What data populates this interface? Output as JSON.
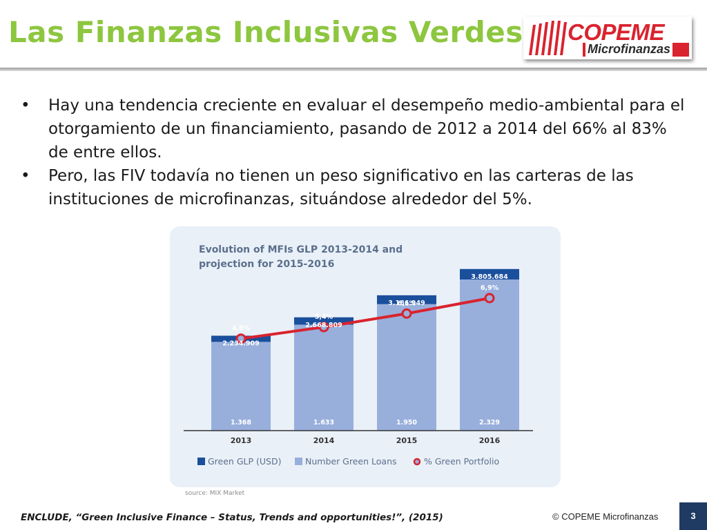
{
  "slide": {
    "title": "Las Finanzas Inclusivas Verdes",
    "logo": {
      "name": "COPEME",
      "sub": "Microfinanzas"
    },
    "bullets": [
      "Hay  una tendencia creciente en evaluar el desempeño medio-ambiental para el otorgamiento de un financiamiento, pasando de 2012 a 2014  del 66% al 83% de entre ellos.",
      "Pero, las FIV todavía no tienen un peso significativo en las carteras de las instituciones de microfinanzas, situándose alrededor del 5%."
    ],
    "bullet_char": "•",
    "source": "source: MIX Market",
    "citation": "ENCLUDE, “Green Inclusive Finance – Status, Trends and opportunities!”, (2015)",
    "copyright": "© COPEME Microfinanzas",
    "page_number": "3"
  },
  "chart_data": {
    "type": "bar",
    "title_lines": [
      "Evolution of MFIs GLP 2013-2014 and",
      "projection for 2015-2016"
    ],
    "categories": [
      "2013",
      "2014",
      "2015",
      "2016"
    ],
    "series": [
      {
        "name": "Green GLP (USD)",
        "values": [
          2234909,
          2668809,
          3186949,
          3805684
        ],
        "labels": [
          "2.234.909",
          "2.668.809",
          "3.186.949",
          "3.805.684"
        ],
        "color": "#1a4f9c"
      },
      {
        "name": "Number Green Loans",
        "values": [
          1368,
          1633,
          1950,
          2329
        ],
        "labels": [
          "1.368",
          "1.633",
          "1.950",
          "2.329"
        ],
        "color": "#98afdc"
      },
      {
        "name": "% Green Portfolio",
        "values": [
          4.8,
          5.4,
          6.1,
          6.9
        ],
        "labels": [
          "4,8%",
          "5,4%",
          "6,1%",
          "6,9%"
        ],
        "color": "#d9232e"
      }
    ],
    "grid": false,
    "legend_position": "bottom",
    "colors": {
      "background": "#e9f0f8",
      "title": "#5b6f8c"
    }
  }
}
